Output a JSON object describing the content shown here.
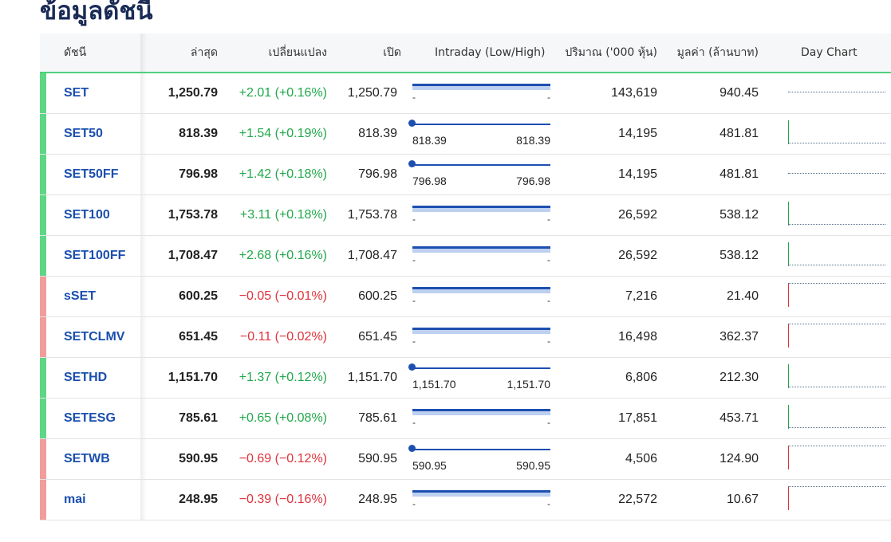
{
  "page": {
    "title": "ข้อมูลดัชนี"
  },
  "table": {
    "headers": {
      "index": "ดัชนี",
      "last": "ล่าสุด",
      "change": "เปลี่ยนแปลง",
      "open": "เปิด",
      "intraday": "Intraday (Low/High)",
      "volume": "ปริมาณ ('000 หุ้น)",
      "value": "มูลค่า (ล้านบาท)",
      "daychart": "Day Chart"
    },
    "rows": [
      {
        "name": "SET",
        "last": "1,250.79",
        "change": "+2.01 (+0.16%)",
        "open": "1,250.79",
        "trend": "up",
        "low": "-",
        "high": "-",
        "volume": "143,619",
        "value": "940.45",
        "chart": "flat"
      },
      {
        "name": "SET50",
        "last": "818.39",
        "change": "+1.54 (+0.19%)",
        "open": "818.39",
        "trend": "up",
        "low": "818.39",
        "high": "818.39",
        "volume": "14,195",
        "value": "481.81",
        "chart": "spike"
      },
      {
        "name": "SET50FF",
        "last": "796.98",
        "change": "+1.42 (+0.18%)",
        "open": "796.98",
        "trend": "up",
        "low": "796.98",
        "high": "796.98",
        "volume": "14,195",
        "value": "481.81",
        "chart": "flat"
      },
      {
        "name": "SET100",
        "last": "1,753.78",
        "change": "+3.11 (+0.18%)",
        "open": "1,753.78",
        "trend": "up",
        "low": "-",
        "high": "-",
        "volume": "26,592",
        "value": "538.12",
        "chart": "spike"
      },
      {
        "name": "SET100FF",
        "last": "1,708.47",
        "change": "+2.68 (+0.16%)",
        "open": "1,708.47",
        "trend": "up",
        "low": "-",
        "high": "-",
        "volume": "26,592",
        "value": "538.12",
        "chart": "spike"
      },
      {
        "name": "sSET",
        "last": "600.25",
        "change": "−0.05 (−0.01%)",
        "open": "600.25",
        "trend": "down",
        "low": "-",
        "high": "-",
        "volume": "7,216",
        "value": "21.40",
        "chart": "spike"
      },
      {
        "name": "SETCLMV",
        "last": "651.45",
        "change": "−0.11 (−0.02%)",
        "open": "651.45",
        "trend": "down",
        "low": "-",
        "high": "-",
        "volume": "16,498",
        "value": "362.37",
        "chart": "spike"
      },
      {
        "name": "SETHD",
        "last": "1,151.70",
        "change": "+1.37 (+0.12%)",
        "open": "1,151.70",
        "trend": "up",
        "low": "1,151.70",
        "high": "1,151.70",
        "volume": "6,806",
        "value": "212.30",
        "chart": "spike"
      },
      {
        "name": "SETESG",
        "last": "785.61",
        "change": "+0.65 (+0.08%)",
        "open": "785.61",
        "trend": "up",
        "low": "-",
        "high": "-",
        "volume": "17,851",
        "value": "453.71",
        "chart": "spike"
      },
      {
        "name": "SETWB",
        "last": "590.95",
        "change": "−0.69 (−0.12%)",
        "open": "590.95",
        "trend": "down",
        "low": "590.95",
        "high": "590.95",
        "volume": "4,506",
        "value": "124.90",
        "chart": "spike"
      },
      {
        "name": "mai",
        "last": "248.95",
        "change": "−0.39 (−0.16%)",
        "open": "248.95",
        "trend": "down",
        "low": "-",
        "high": "-",
        "volume": "22,572",
        "value": "10.67",
        "chart": "spike"
      }
    ]
  }
}
